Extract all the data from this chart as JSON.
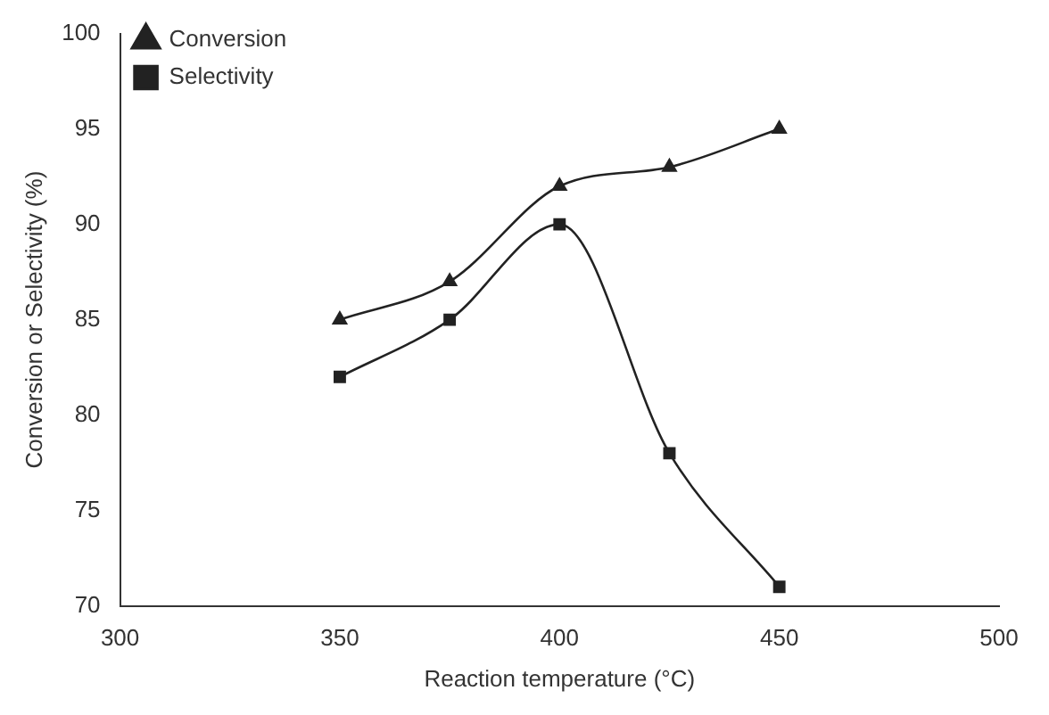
{
  "chart_data": {
    "type": "line",
    "xlabel": "Reaction temperature (°C)",
    "ylabel": "Conversion or Selectivity (%)",
    "x": [
      350,
      375,
      400,
      425,
      450
    ],
    "series": [
      {
        "name": "Conversion",
        "color": "#222222",
        "marker": "triangle",
        "values": [
          85,
          87,
          92,
          93,
          95
        ]
      },
      {
        "name": "Selectivity",
        "color": "#222222",
        "marker": "square",
        "values": [
          82,
          85,
          90,
          78,
          71
        ]
      }
    ],
    "xlim": [
      300,
      500
    ],
    "xticks": [
      300,
      350,
      400,
      450,
      500
    ],
    "ylim": [
      70,
      100
    ],
    "yticks": [
      70,
      75,
      80,
      85,
      90,
      95,
      100
    ],
    "grid": false,
    "legend": "top left",
    "line_style": "solid"
  }
}
